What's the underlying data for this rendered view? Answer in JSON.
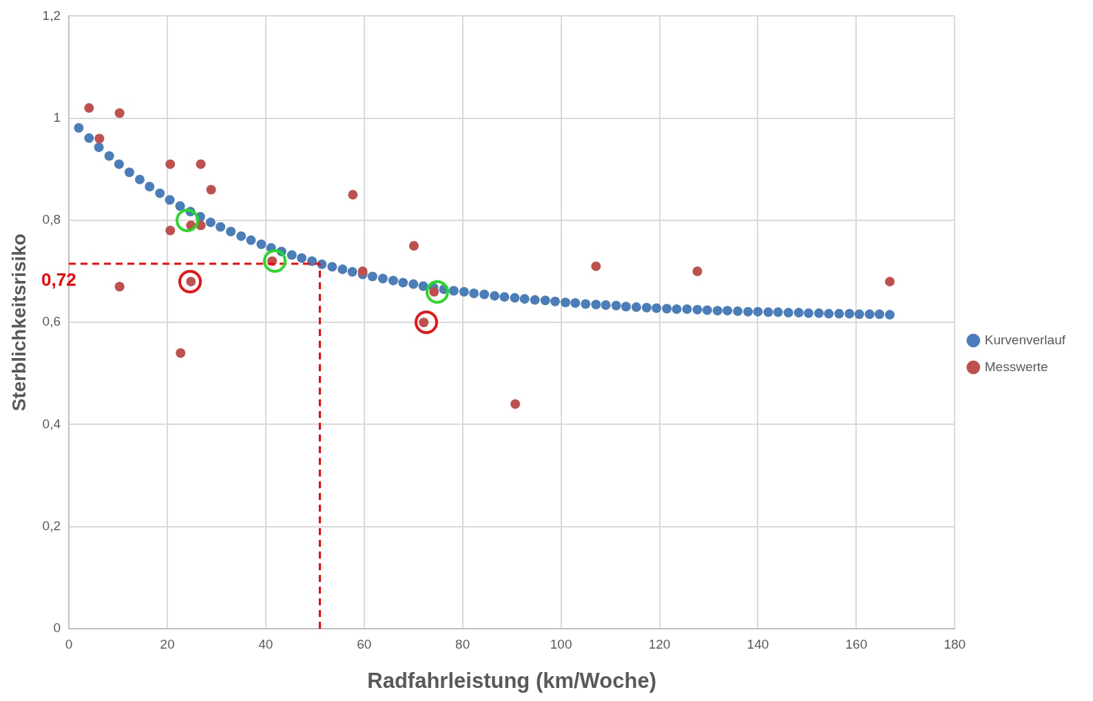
{
  "chart_data": {
    "type": "scatter",
    "xlabel": "Radfahrleistung (km/Woche)",
    "ylabel": "Sterblichkeitsrisiko",
    "xlim": [
      0,
      180
    ],
    "xticks": [
      0,
      20,
      40,
      60,
      80,
      100,
      120,
      140,
      160,
      180
    ],
    "ylim": [
      0,
      1.2
    ],
    "yticks": [
      0,
      {
        "value": 0.2,
        "label": "0,2"
      },
      {
        "value": 0.4,
        "label": "0,4"
      },
      {
        "value": 0.6,
        "label": "0,6"
      },
      {
        "value": 0.8,
        "label": "0,8"
      },
      1,
      {
        "value": 1.2,
        "label": "1,2"
      }
    ],
    "grid": true,
    "legend": "right",
    "marker": "circle",
    "series": [
      {
        "name": "Kurvenverlauf",
        "color": "#4a7ebb",
        "x": [
          2.0,
          4.1,
          6.1,
          8.2,
          10.2,
          12.3,
          14.4,
          16.4,
          18.5,
          20.5,
          22.6,
          24.7,
          26.7,
          28.8,
          30.8,
          32.9,
          35.0,
          37.0,
          39.1,
          41.1,
          43.2,
          45.3,
          47.3,
          49.4,
          51.4,
          53.5,
          55.6,
          57.6,
          59.7,
          61.7,
          63.8,
          65.9,
          67.9,
          70.0,
          72.0,
          74.1,
          76.2,
          78.2,
          80.3,
          82.3,
          84.4,
          86.5,
          88.5,
          90.6,
          92.6,
          94.7,
          96.8,
          98.8,
          100.9,
          102.9,
          105.0,
          107.1,
          109.1,
          111.2,
          113.2,
          115.3,
          117.4,
          119.4,
          121.5,
          123.5,
          125.6,
          127.7,
          129.7,
          131.8,
          133.8,
          135.9,
          138.0,
          140.0,
          142.1,
          144.1,
          146.2,
          148.3,
          150.3,
          152.4,
          154.4,
          156.5,
          158.6,
          160.6,
          162.7,
          164.7,
          166.8
        ],
        "values": [
          0.981,
          0.961,
          0.943,
          0.926,
          0.91,
          0.894,
          0.88,
          0.866,
          0.853,
          0.84,
          0.828,
          0.817,
          0.807,
          0.796,
          0.787,
          0.778,
          0.769,
          0.761,
          0.753,
          0.746,
          0.739,
          0.732,
          0.726,
          0.72,
          0.714,
          0.709,
          0.704,
          0.699,
          0.694,
          0.69,
          0.686,
          0.682,
          0.678,
          0.675,
          0.671,
          0.668,
          0.665,
          0.662,
          0.66,
          0.657,
          0.655,
          0.652,
          0.65,
          0.648,
          0.646,
          0.644,
          0.643,
          0.641,
          0.639,
          0.638,
          0.636,
          0.635,
          0.634,
          0.633,
          0.631,
          0.63,
          0.629,
          0.628,
          0.627,
          0.626,
          0.626,
          0.625,
          0.624,
          0.623,
          0.623,
          0.622,
          0.621,
          0.621,
          0.62,
          0.62,
          0.619,
          0.619,
          0.618,
          0.618,
          0.617,
          0.617,
          0.617,
          0.616,
          0.616,
          0.616,
          0.615
        ]
      },
      {
        "name": "Messwerte",
        "color": "#c0504d",
        "x": [
          4.1,
          10.3,
          6.2,
          20.6,
          26.8,
          28.9,
          20.6,
          24.8,
          26.8,
          10.3,
          24.8,
          22.7,
          57.7,
          41.3,
          59.7,
          70.1,
          74.2,
          72.1,
          90.7,
          107.1,
          127.7,
          166.8
        ],
        "values": [
          1.02,
          1.01,
          0.96,
          0.91,
          0.91,
          0.86,
          0.78,
          0.79,
          0.79,
          0.67,
          0.68,
          0.54,
          0.85,
          0.72,
          0.7,
          0.75,
          0.66,
          0.6,
          0.44,
          0.71,
          0.7,
          0.68
        ]
      }
    ],
    "ref_lines": [
      {
        "axis": "y",
        "value": 0.715,
        "label": "0,72",
        "color": "#ff0000",
        "line_style": "dashed"
      },
      {
        "axis": "x",
        "value": 51,
        "color": "#ff0000",
        "line_style": "dashed"
      }
    ]
  }
}
